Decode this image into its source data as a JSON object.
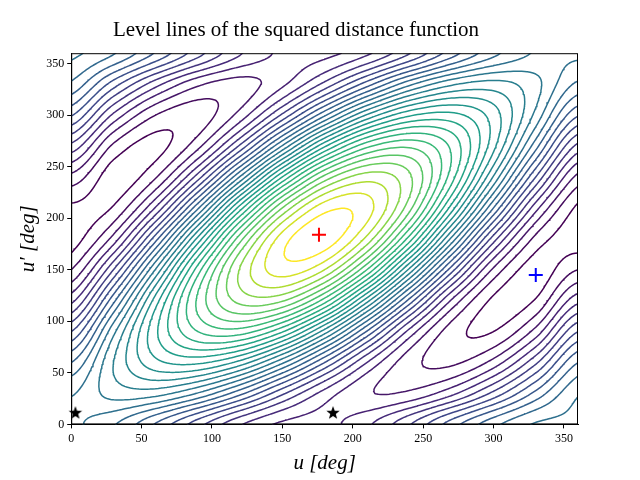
{
  "chart_data": {
    "type": "contour",
    "title": "Level lines of the squared distance function",
    "xlabel": "u [deg]",
    "ylabel": "u′ [deg]",
    "xlim": [
      0,
      360
    ],
    "ylim": [
      0,
      360
    ],
    "xticks": [
      0,
      50,
      100,
      150,
      200,
      250,
      300,
      350
    ],
    "yticks": [
      0,
      50,
      100,
      150,
      200,
      250,
      300,
      350
    ],
    "grid": false,
    "grid_x": [
      0,
      30,
      60,
      90,
      120,
      150,
      180,
      210,
      240,
      270,
      300,
      330,
      360
    ],
    "grid_y": [
      0,
      30,
      60,
      90,
      120,
      150,
      180,
      210,
      240,
      270,
      300,
      330,
      360
    ],
    "z": [
      [
        1.32,
        1.21,
        0.99,
        0.74,
        0.51,
        0.38,
        0.37,
        0.48,
        0.69,
        0.95,
        1.17,
        1.31,
        1.32
      ],
      [
        1.29,
        1.44,
        1.44,
        1.29,
        1.03,
        0.72,
        0.46,
        0.31,
        0.32,
        0.47,
        0.73,
        1.03,
        1.29
      ],
      [
        1.1,
        1.5,
        1.77,
        1.82,
        1.66,
        1.32,
        0.9,
        0.5,
        0.24,
        0.18,
        0.34,
        0.68,
        1.1
      ],
      [
        0.8,
        1.37,
        1.88,
        2.2,
        2.25,
        2.01,
        1.55,
        0.99,
        0.47,
        0.15,
        0.1,
        0.34,
        0.8
      ],
      [
        0.47,
        1.07,
        1.75,
        2.32,
        2.63,
        2.61,
        2.25,
        1.64,
        0.97,
        0.39,
        0.08,
        0.11,
        0.47
      ],
      [
        0.2,
        0.7,
        1.41,
        2.15,
        2.71,
        2.95,
        2.8,
        2.3,
        1.58,
        0.85,
        0.28,
        0.05,
        0.2
      ],
      [
        0.05,
        0.34,
        0.96,
        1.73,
        2.46,
        2.95,
        3.06,
        2.77,
        2.16,
        1.38,
        0.65,
        0.17,
        0.05
      ],
      [
        0.08,
        0.11,
        0.51,
        1.18,
        1.95,
        2.6,
        2.96,
        2.94,
        2.54,
        1.86,
        1.1,
        0.44,
        0.08
      ],
      [
        0.27,
        0.05,
        0.19,
        0.65,
        1.31,
        2.0,
        2.53,
        2.75,
        2.62,
        2.15,
        1.49,
        0.8,
        0.27
      ],
      [
        0.57,
        0.18,
        0.07,
        0.27,
        0.72,
        1.31,
        1.88,
        2.27,
        2.38,
        2.18,
        1.73,
        1.14,
        0.57
      ],
      [
        0.91,
        0.48,
        0.2,
        0.15,
        0.34,
        0.72,
        1.18,
        1.61,
        1.88,
        1.93,
        1.75,
        1.37,
        0.91
      ],
      [
        1.18,
        0.85,
        0.54,
        0.32,
        0.26,
        0.38,
        0.63,
        0.95,
        1.27,
        1.48,
        1.54,
        1.43,
        1.18
      ],
      [
        1.32,
        1.21,
        0.99,
        0.74,
        0.51,
        0.38,
        0.37,
        0.48,
        0.69,
        0.95,
        1.17,
        1.31,
        1.32
      ]
    ],
    "levels": [
      0.1,
      0.2,
      0.3,
      0.4,
      0.5,
      0.6,
      0.7,
      0.8,
      0.9,
      1.0,
      1.1,
      1.2,
      1.3,
      1.4,
      1.5,
      1.6,
      1.7,
      1.8,
      1.9,
      2.0,
      2.1,
      2.2,
      2.3,
      2.4,
      2.5,
      2.6,
      2.7,
      2.8,
      2.9,
      3.0
    ],
    "series": [
      {
        "type": "scatter",
        "marker": "plus",
        "color": "#ff0000",
        "x": [
          176
        ],
        "values": [
          184
        ]
      },
      {
        "type": "scatter",
        "marker": "plus",
        "color": "#0000ff",
        "x": [
          330
        ],
        "values": [
          145
        ]
      },
      {
        "type": "scatter",
        "marker": "star",
        "color": "#000000",
        "x": [
          3,
          186
        ],
        "values": [
          11,
          11
        ]
      }
    ]
  }
}
